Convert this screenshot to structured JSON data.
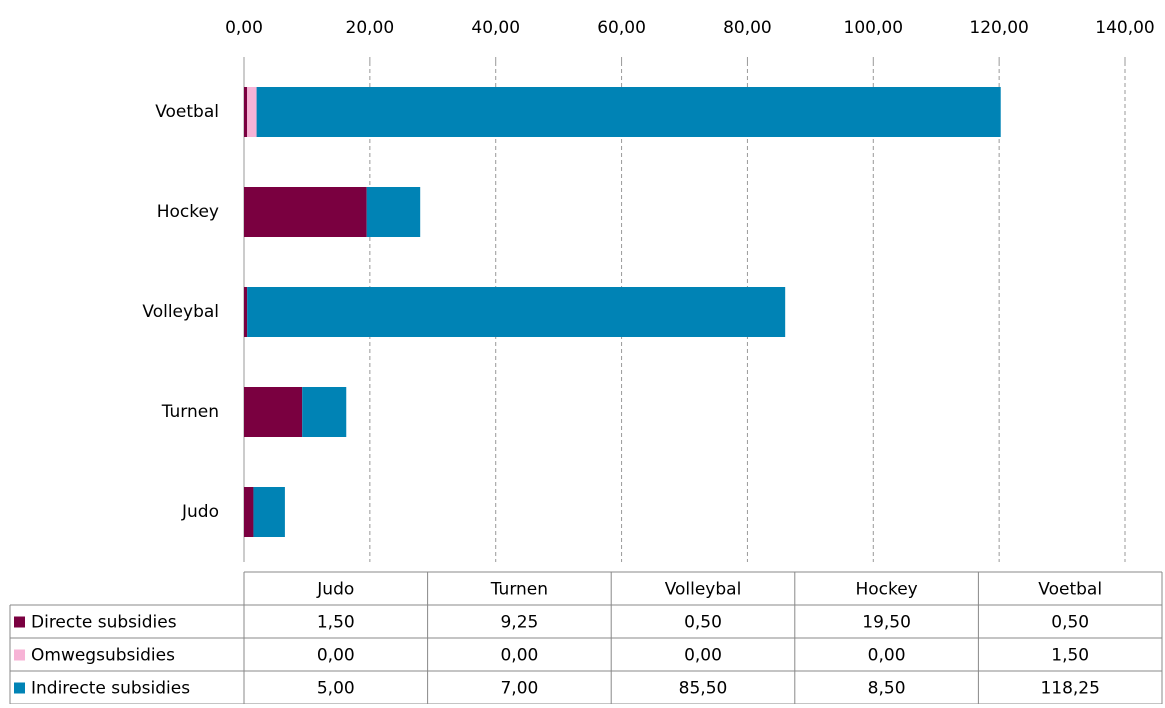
{
  "chart_data": {
    "type": "stacked_bar_horizontal",
    "categories": [
      "Judo",
      "Turnen",
      "Volleybal",
      "Hockey",
      "Voetbal"
    ],
    "series": [
      {
        "name": "Directe subsidies",
        "color": "#7a0040",
        "values": [
          1.5,
          9.25,
          0.5,
          19.5,
          0.5
        ],
        "value_labels": [
          "1,50",
          "9,25",
          "0,50",
          "19,50",
          "0,50"
        ]
      },
      {
        "name": "Omwegsubsidies",
        "color": "#f7b3d6",
        "values": [
          0,
          0,
          0,
          0,
          1.5
        ],
        "value_labels": [
          "0,00",
          "0,00",
          "0,00",
          "0,00",
          "1,50"
        ]
      },
      {
        "name": "Indirecte subsidies",
        "color": "#0083b5",
        "values": [
          5,
          7,
          85.5,
          8.5,
          118.25
        ],
        "value_labels": [
          "5,00",
          "7,00",
          "85,50",
          "8,50",
          "118,25"
        ]
      }
    ],
    "xlim": [
      0,
      140
    ],
    "xticks": [
      {
        "value": 0,
        "label": "0,00"
      },
      {
        "value": 20,
        "label": "20,00"
      },
      {
        "value": 40,
        "label": "40,00"
      },
      {
        "value": 60,
        "label": "60,00"
      },
      {
        "value": 80,
        "label": "80,00"
      },
      {
        "value": 100,
        "label": "100,00"
      },
      {
        "value": 120,
        "label": "120,00"
      },
      {
        "value": 140,
        "label": "140,00"
      }
    ],
    "grid": true
  }
}
